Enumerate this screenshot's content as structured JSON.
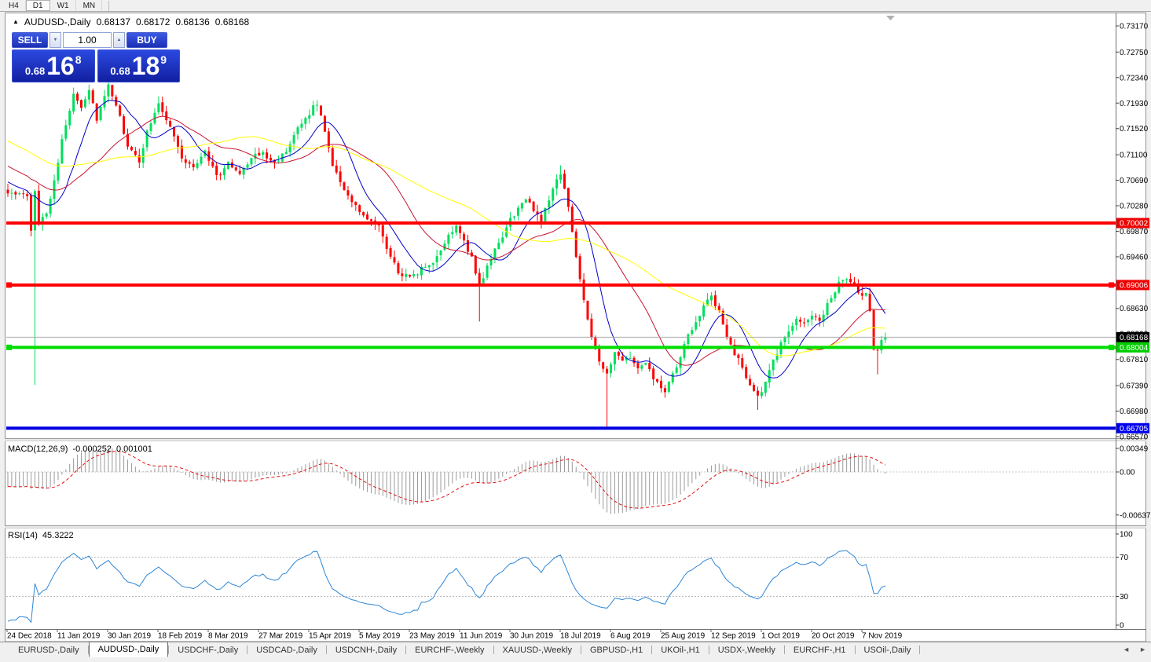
{
  "toolbar": {
    "timeframes": [
      {
        "label": "H4",
        "active": false
      },
      {
        "label": "D1",
        "active": true
      },
      {
        "label": "W1",
        "active": false
      },
      {
        "label": "MN",
        "active": false
      }
    ]
  },
  "icons": {
    "symbol_marker": "▲",
    "volume_down": "▼",
    "volume_up": "▲",
    "scroll_left": "◄",
    "scroll_right": "►"
  },
  "chart_header": {
    "title": "AUDUSD-,Daily",
    "open": "0.68137",
    "high": "0.68172",
    "low": "0.68136",
    "close": "0.68168"
  },
  "trade_panel": {
    "sell_label": "SELL",
    "buy_label": "BUY",
    "volume": "1.00",
    "sell_price": {
      "prefix": "0.68",
      "big": "16",
      "sup": "8"
    },
    "buy_price": {
      "prefix": "0.68",
      "big": "18",
      "sup": "9"
    }
  },
  "macd": {
    "label": "MACD(12,26,9)",
    "value_main": "-0.000252",
    "value_signal": "0.001001",
    "axis": [
      {
        "label": "0.00349",
        "value": 0.00349
      },
      {
        "label": "0.00",
        "value": 0
      },
      {
        "label": "-0.00637",
        "value": -0.00637
      }
    ]
  },
  "rsi": {
    "label": "RSI(14)",
    "value": "45.3222",
    "axis": [
      {
        "label": "100",
        "value": 100
      },
      {
        "label": "70",
        "value": 70
      },
      {
        "label": "30",
        "value": 30
      },
      {
        "label": "0",
        "value": 0
      }
    ],
    "levels": [
      70,
      30
    ]
  },
  "x_axis": {
    "labels": [
      "24 Dec 2018",
      "11 Jan 2019",
      "30 Jan 2019",
      "18 Feb 2019",
      "8 Mar 2019",
      "27 Mar 2019",
      "15 Apr 2019",
      "5 May 2019",
      "23 May 2019",
      "11 Jun 2019",
      "30 Jun 2019",
      "18 Jul 2019",
      "6 Aug 2019",
      "25 Aug 2019",
      "12 Sep 2019",
      "1 Oct 2019",
      "20 Oct 2019",
      "7 Nov 2019"
    ]
  },
  "y_axis": {
    "ticks": [
      0.7317,
      0.7275,
      0.7234,
      0.7193,
      0.7152,
      0.711,
      0.7069,
      0.7028,
      0.6987,
      0.6946,
      0.6863,
      0.6822,
      0.6781,
      0.6739,
      0.6698,
      0.6657
    ],
    "boxes": [
      {
        "price": 0.70002,
        "bg": "#EE0000",
        "fg": "#FFFFFF"
      },
      {
        "price": 0.69006,
        "bg": "#EE0000",
        "fg": "#FFFFFF"
      },
      {
        "price": 0.68168,
        "bg": "#000000",
        "fg": "#FFFFFF"
      },
      {
        "price": 0.68004,
        "bg": "#00CC00",
        "fg": "#FFFFFF"
      },
      {
        "price": 0.66705,
        "bg": "#0000EE",
        "fg": "#FFFFFF"
      }
    ]
  },
  "tabs": {
    "items": [
      {
        "label": "EURUSD-,Daily",
        "active": false
      },
      {
        "label": "AUDUSD-,Daily",
        "active": true
      },
      {
        "label": "USDCHF-,Daily",
        "active": false
      },
      {
        "label": "USDCAD-,Daily",
        "active": false
      },
      {
        "label": "USDCNH-,Daily",
        "active": false
      },
      {
        "label": "EURCHF-,Weekly",
        "active": false
      },
      {
        "label": "XAUUSD-,Weekly",
        "active": false
      },
      {
        "label": "GBPUSD-,H1",
        "active": false
      },
      {
        "label": "UKOil-,H1",
        "active": false
      },
      {
        "label": "USDX-,Weekly",
        "active": false
      },
      {
        "label": "EURCHF-,H1",
        "active": false
      },
      {
        "label": "USOil-,Daily",
        "active": false
      }
    ]
  },
  "chart_data": {
    "type": "candlestick",
    "symbol": "AUDUSD-",
    "timeframe": "Daily",
    "current_bid": 0.68168,
    "candle_count": 228,
    "colors": {
      "bull": "#00DE5C",
      "bear": "#FE0000"
    },
    "close_anchors": [
      [
        0,
        0.7052
      ],
      [
        2,
        0.7042
      ],
      [
        4,
        0.7048
      ],
      [
        5,
        0.7041
      ],
      [
        6,
        0.6985
      ],
      [
        7,
        0.705
      ],
      [
        8,
        0.7002
      ],
      [
        10,
        0.7018
      ],
      [
        12,
        0.7069
      ],
      [
        14,
        0.7131
      ],
      [
        17,
        0.721
      ],
      [
        19,
        0.7188
      ],
      [
        21,
        0.7215
      ],
      [
        23,
        0.7168
      ],
      [
        26,
        0.7219
      ],
      [
        28,
        0.719
      ],
      [
        31,
        0.7125
      ],
      [
        34,
        0.7096
      ],
      [
        36,
        0.715
      ],
      [
        39,
        0.7192
      ],
      [
        42,
        0.7156
      ],
      [
        45,
        0.7105
      ],
      [
        48,
        0.7088
      ],
      [
        51,
        0.7118
      ],
      [
        54,
        0.7075
      ],
      [
        57,
        0.7095
      ],
      [
        60,
        0.7082
      ],
      [
        63,
        0.7105
      ],
      [
        66,
        0.7112
      ],
      [
        69,
        0.71
      ],
      [
        72,
        0.7112
      ],
      [
        75,
        0.715
      ],
      [
        78,
        0.7178
      ],
      [
        80,
        0.7192
      ],
      [
        82,
        0.715
      ],
      [
        84,
        0.7095
      ],
      [
        86,
        0.7068
      ],
      [
        89,
        0.7032
      ],
      [
        92,
        0.7012
      ],
      [
        96,
        0.6992
      ],
      [
        99,
        0.6945
      ],
      [
        102,
        0.6912
      ],
      [
        105,
        0.6918
      ],
      [
        108,
        0.693
      ],
      [
        111,
        0.6943
      ],
      [
        114,
        0.698
      ],
      [
        116,
        0.6998
      ],
      [
        118,
        0.6974
      ],
      [
        120,
        0.6943
      ],
      [
        122,
        0.69
      ],
      [
        124,
        0.693
      ],
      [
        127,
        0.6968
      ],
      [
        130,
        0.7005
      ],
      [
        132,
        0.7024
      ],
      [
        134,
        0.7038
      ],
      [
        136,
        0.7022
      ],
      [
        138,
        0.7005
      ],
      [
        140,
        0.704
      ],
      [
        142,
        0.707
      ],
      [
        143,
        0.7082
      ],
      [
        145,
        0.7025
      ],
      [
        147,
        0.6945
      ],
      [
        149,
        0.688
      ],
      [
        151,
        0.6818
      ],
      [
        153,
        0.678
      ],
      [
        155,
        0.6755
      ],
      [
        157,
        0.679
      ],
      [
        159,
        0.6778
      ],
      [
        161,
        0.6785
      ],
      [
        163,
        0.6766
      ],
      [
        165,
        0.6772
      ],
      [
        168,
        0.6742
      ],
      [
        170,
        0.6728
      ],
      [
        172,
        0.6755
      ],
      [
        174,
        0.6785
      ],
      [
        176,
        0.6818
      ],
      [
        178,
        0.6842
      ],
      [
        180,
        0.6868
      ],
      [
        182,
        0.688
      ],
      [
        184,
        0.6855
      ],
      [
        186,
        0.6818
      ],
      [
        188,
        0.6792
      ],
      [
        190,
        0.6766
      ],
      [
        192,
        0.6742
      ],
      [
        194,
        0.6722
      ],
      [
        196,
        0.6742
      ],
      [
        198,
        0.6778
      ],
      [
        200,
        0.6805
      ],
      [
        202,
        0.6828
      ],
      [
        204,
        0.6848
      ],
      [
        206,
        0.6836
      ],
      [
        208,
        0.6855
      ],
      [
        210,
        0.6842
      ],
      [
        212,
        0.6868
      ],
      [
        214,
        0.6893
      ],
      [
        216,
        0.6912
      ],
      [
        218,
        0.6906
      ],
      [
        220,
        0.6888
      ],
      [
        222,
        0.6885
      ],
      [
        223,
        0.6862
      ],
      [
        224,
        0.68
      ],
      [
        225,
        0.6792
      ],
      [
        226,
        0.6812
      ],
      [
        227,
        0.68168
      ]
    ],
    "wick_overrides": {
      "7": {
        "low": 0.674
      },
      "122": {
        "low": 0.6842
      },
      "143": {
        "high": 0.7093
      },
      "155": {
        "low": 0.6673
      },
      "194": {
        "low": 0.67
      },
      "225": {
        "low": 0.6757
      }
    },
    "ma_seed_trend": {
      "count": 50,
      "from": 0.7215,
      "to": 0.7052
    },
    "moving_averages": [
      {
        "period": 10,
        "color": "#0000C8"
      },
      {
        "period": 25,
        "color": "#C81430"
      },
      {
        "period": 50,
        "color": "#FFFF00"
      }
    ],
    "hlines": [
      {
        "price": 0.70002,
        "color": "#FF0000",
        "thickness": 4,
        "selected": false
      },
      {
        "price": 0.69006,
        "color": "#FF0000",
        "thickness": 4,
        "selected": true
      },
      {
        "price": 0.68004,
        "color": "#00DD00",
        "thickness": 4,
        "selected": true
      },
      {
        "price": 0.66705,
        "color": "#0000E0",
        "thickness": 4,
        "selected": false
      }
    ],
    "bid_line": {
      "price": 0.68168,
      "color": "#A8A8A8"
    },
    "macd_params": {
      "fast": 12,
      "slow": 26,
      "signal": 9,
      "hist_color": "#9A9A9A",
      "signal_color": "#E01010"
    },
    "rsi_params": {
      "period": 14,
      "color": "#2F86D6",
      "level_color": "#BBBBBB"
    }
  }
}
